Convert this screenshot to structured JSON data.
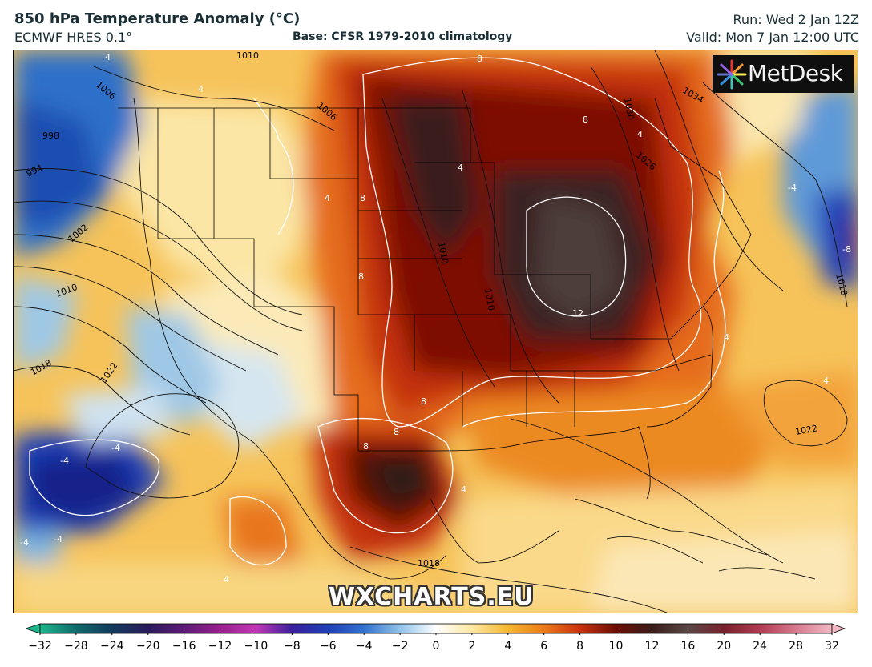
{
  "header": {
    "title": "850 hPa Temperature Anomaly (°C)",
    "model": "ECMWF HRES 0.1°",
    "base": "Base: CFSR 1979-2010 climatology",
    "run": "Run: Wed 2 Jan 12Z",
    "valid": "Valid: Mon 7 Jan 12:00 UTC"
  },
  "logo": {
    "text": "MetDesk",
    "icon": "starburst-logo-icon"
  },
  "watermark": "WXCHARTS.EU",
  "colorbar": {
    "ticks": [
      "−32",
      "−28",
      "−24",
      "−20",
      "−16",
      "−12",
      "−10",
      "−8",
      "−6",
      "−4",
      "−2",
      "0",
      "2",
      "4",
      "6",
      "8",
      "10",
      "12",
      "16",
      "20",
      "24",
      "28",
      "32"
    ],
    "colors": [
      "#1fb88e",
      "#0d6b6a",
      "#123a5c",
      "#2a1a5e",
      "#5e1a78",
      "#9a1f8e",
      "#c436b8",
      "#3a1f9e",
      "#1f3fb8",
      "#2f72d0",
      "#8fc3ea",
      "#ffffff",
      "#fde8a0",
      "#f6b630",
      "#ec7a1a",
      "#c8320c",
      "#6e0d06",
      "#3a1c1a",
      "#5a4846",
      "#7a1f2c",
      "#b23a52",
      "#d8788e",
      "#f3b8c6"
    ]
  },
  "map": {
    "isobar_labels": [
      "1010",
      "1006",
      "998",
      "994",
      "1002",
      "1010",
      "1018",
      "1022",
      "1006",
      "1010",
      "1030",
      "1034",
      "1026",
      "1018",
      "1022",
      "1018",
      "1010"
    ],
    "anomaly_labels": [
      "4",
      "4",
      "8",
      "8",
      "4",
      "8",
      "8",
      "4",
      "12",
      "8",
      "8",
      "8",
      "4",
      "4",
      "-4",
      "-4",
      "-4",
      "-4",
      "4",
      "-8",
      "-4",
      "4",
      "4"
    ]
  }
}
